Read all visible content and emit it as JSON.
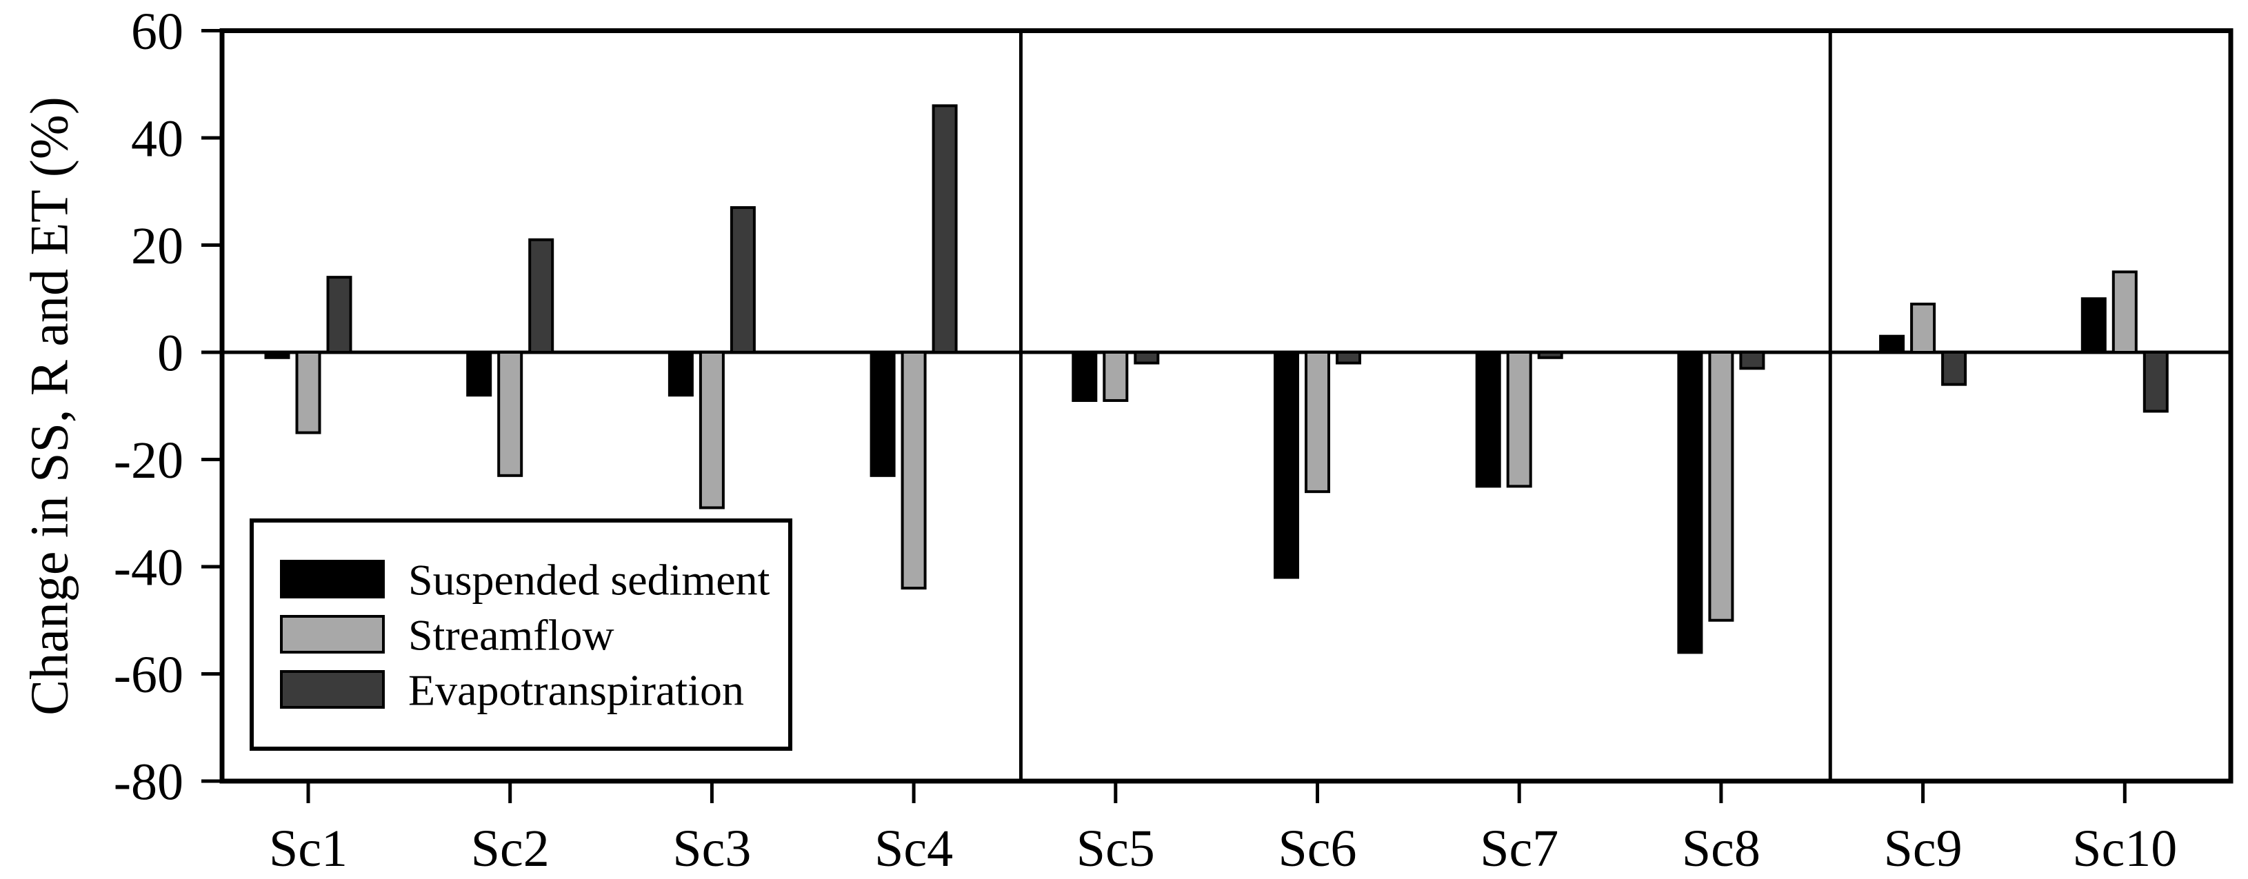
{
  "chart_data": {
    "type": "bar",
    "title": "",
    "xlabel": "",
    "ylabel": "Change in SS, R and ET (%)",
    "ylim": [
      -80,
      60
    ],
    "yticks": [
      60,
      40,
      20,
      0,
      -20,
      -40,
      -60,
      -80
    ],
    "grid": false,
    "legend_position": "lower-left-inside",
    "categories": [
      "Sc1",
      "Sc2",
      "Sc3",
      "Sc4",
      "Sc5",
      "Sc6",
      "Sc7",
      "Sc8",
      "Sc9",
      "Sc10"
    ],
    "series": [
      {
        "name": "Suspended sediment",
        "color": "#000000",
        "values": [
          -1,
          -8,
          -8,
          -23,
          -9,
          -42,
          -25,
          -56,
          3,
          10
        ]
      },
      {
        "name": "Streamflow",
        "color": "#A8A8A8",
        "values": [
          -15,
          -23,
          -29,
          -44,
          -9,
          -26,
          -25,
          -50,
          9,
          15
        ]
      },
      {
        "name": "Evapotranspiration",
        "color": "#3B3B3B",
        "values": [
          14,
          21,
          27,
          46,
          -2,
          -2,
          -1,
          -3,
          -6,
          -11
        ]
      }
    ],
    "panel_dividers_after": [
      "Sc4",
      "Sc8"
    ],
    "bar_edge_color": "#000000",
    "axis_color": "#000000",
    "background_color": "#FFFFFF"
  }
}
